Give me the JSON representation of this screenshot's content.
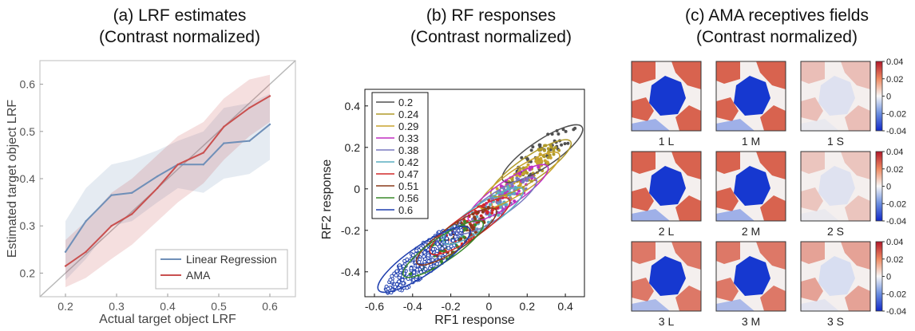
{
  "panels": [
    {
      "title_line1": "(a) LRF estimates",
      "title_line2": "(Contrast normalized)"
    },
    {
      "title_line1": "(b) RF responses",
      "title_line2": "(Contrast normalized)"
    },
    {
      "title_line1": "(c) AMA receptives fields",
      "title_line2": "(Contrast normalized)"
    }
  ],
  "chart_data": [
    {
      "type": "line",
      "title": "(a) LRF estimates (Contrast normalized)",
      "xlabel": "Actual target object LRF",
      "ylabel": "Estimated target object LRF",
      "xlim": [
        0.15,
        0.65
      ],
      "ylim": [
        0.15,
        0.65
      ],
      "xticks": [
        "0.2",
        "0.3",
        "0.4",
        "0.5",
        "0.6"
      ],
      "yticks": [
        "0.2",
        "0.3",
        "0.4",
        "0.5",
        "0.6"
      ],
      "grid": false,
      "legend_position": "bottom-right",
      "identity_line": true,
      "x": [
        0.2,
        0.24,
        0.29,
        0.33,
        0.38,
        0.42,
        0.47,
        0.51,
        0.56,
        0.6
      ],
      "series": [
        {
          "name": "Linear Regression",
          "color": "#6f8fb8",
          "values": [
            0.245,
            0.31,
            0.365,
            0.37,
            0.405,
            0.43,
            0.43,
            0.475,
            0.48,
            0.515
          ],
          "band_low": [
            0.185,
            0.23,
            0.3,
            0.31,
            0.35,
            0.38,
            0.37,
            0.4,
            0.41,
            0.44
          ],
          "band_high": [
            0.31,
            0.38,
            0.43,
            0.44,
            0.46,
            0.48,
            0.5,
            0.55,
            0.56,
            0.58
          ]
        },
        {
          "name": "AMA",
          "color": "#c9504f",
          "values": [
            0.215,
            0.245,
            0.3,
            0.325,
            0.38,
            0.43,
            0.455,
            0.51,
            0.55,
            0.575
          ],
          "band_low": [
            0.17,
            0.19,
            0.23,
            0.26,
            0.31,
            0.35,
            0.39,
            0.44,
            0.49,
            0.52
          ],
          "band_high": [
            0.27,
            0.31,
            0.37,
            0.4,
            0.45,
            0.49,
            0.52,
            0.57,
            0.61,
            0.62
          ]
        }
      ]
    },
    {
      "type": "scatter",
      "title": "(b) RF responses (Contrast normalized)",
      "xlabel": "RF1 response",
      "ylabel": "RF2 response",
      "xlim": [
        -0.65,
        0.5
      ],
      "ylim": [
        -0.52,
        0.48
      ],
      "xticks": [
        "-0.6",
        "-0.4",
        "-0.2",
        "0",
        "0.2",
        "0.4"
      ],
      "yticks": [
        "-0.4",
        "-0.2",
        "0",
        "0.2",
        "0.4"
      ],
      "grid": false,
      "legend_position": "top-left",
      "series": [
        {
          "name": "0.2",
          "color": "#505050",
          "center": [
            0.28,
            0.17
          ],
          "radius_major": 0.2,
          "radius_minor": 0.055
        },
        {
          "name": "0.24",
          "color": "#b09a2a",
          "center": [
            0.22,
            0.1
          ],
          "radius_major": 0.2,
          "radius_minor": 0.05
        },
        {
          "name": "0.29",
          "color": "#c9a42e",
          "center": [
            0.16,
            0.04
          ],
          "radius_major": 0.2,
          "radius_minor": 0.05
        },
        {
          "name": "0.33",
          "color": "#c02fc0",
          "center": [
            0.1,
            -0.02
          ],
          "radius_major": 0.2,
          "radius_minor": 0.05
        },
        {
          "name": "0.38",
          "color": "#7a7ac0",
          "center": [
            0.04,
            -0.08
          ],
          "radius_major": 0.2,
          "radius_minor": 0.05
        },
        {
          "name": "0.42",
          "color": "#5aaec0",
          "center": [
            -0.03,
            -0.13
          ],
          "radius_major": 0.2,
          "radius_minor": 0.05
        },
        {
          "name": "0.47",
          "color": "#d22a2a",
          "center": [
            -0.1,
            -0.18
          ],
          "radius_major": 0.2,
          "radius_minor": 0.05
        },
        {
          "name": "0.51",
          "color": "#8a3a1a",
          "center": [
            -0.17,
            -0.23
          ],
          "radius_major": 0.2,
          "radius_minor": 0.05
        },
        {
          "name": "0.56",
          "color": "#3a8a2a",
          "center": [
            -0.24,
            -0.29
          ],
          "radius_major": 0.2,
          "radius_minor": 0.05
        },
        {
          "name": "0.6",
          "color": "#1f3fae",
          "center": [
            -0.34,
            -0.34
          ],
          "radius_major": 0.23,
          "radius_minor": 0.06
        }
      ]
    },
    {
      "type": "heatmap",
      "title": "(c) AMA receptives fields (Contrast normalized)",
      "colorbar_ticks": [
        "0.04",
        "0.02",
        "0",
        "-0.02",
        "-0.04"
      ],
      "colorbar_range": [
        -0.04,
        0.04
      ],
      "rows": [
        {
          "labels": [
            "1 L",
            "1 M",
            "1 S"
          ],
          "strength": [
            1.0,
            1.0,
            0.35
          ]
        },
        {
          "labels": [
            "2 L",
            "2 M",
            "2 S"
          ],
          "strength": [
            1.0,
            1.0,
            0.3
          ]
        },
        {
          "labels": [
            "3 L",
            "3 M",
            "3 S"
          ],
          "strength": [
            0.85,
            0.85,
            0.55
          ]
        }
      ]
    }
  ]
}
